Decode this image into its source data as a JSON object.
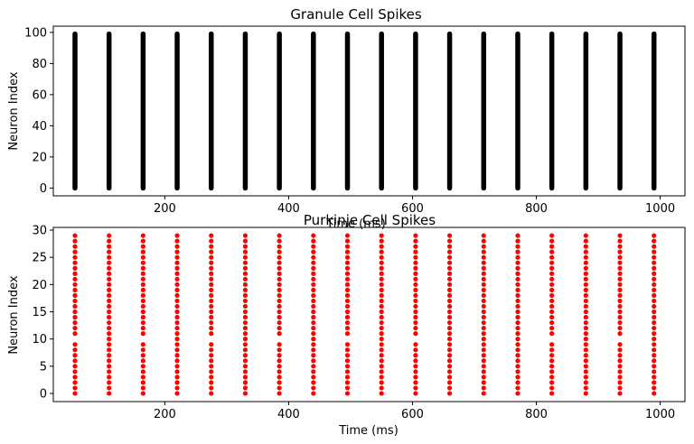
{
  "chart_data": [
    {
      "type": "scatter",
      "title": "Granule Cell Spikes",
      "xlabel": "Time (ms)",
      "ylabel": "Neuron Index",
      "xlim": [
        20,
        1040
      ],
      "ylim": [
        -5,
        104
      ],
      "xticks": [
        200,
        400,
        600,
        800,
        1000
      ],
      "yticks": [
        0,
        20,
        40,
        60,
        80,
        100
      ],
      "color": "#000000",
      "grid": false,
      "series": [
        {
          "spike_times": [
            55,
            110,
            165,
            220,
            275,
            330,
            385,
            440,
            495,
            550,
            605,
            660,
            715,
            770,
            825,
            880,
            935,
            990
          ],
          "neurons_per_spike": [
            0,
            99
          ]
        }
      ]
    },
    {
      "type": "scatter",
      "title": "Purkinje Cell Spikes",
      "xlabel": "Time (ms)",
      "ylabel": "Neuron Index",
      "xlim": [
        20,
        1040
      ],
      "ylim": [
        -1.5,
        30.5
      ],
      "xticks": [
        200,
        400,
        600,
        800,
        1000
      ],
      "yticks": [
        0,
        5,
        10,
        15,
        20,
        25,
        30
      ],
      "color": "#ff0000",
      "grid": false,
      "series": [
        {
          "spike_times": [
            55,
            110,
            165,
            220,
            275,
            330,
            385,
            440,
            495,
            550,
            605,
            660,
            715,
            770,
            825,
            880,
            935,
            990
          ],
          "neurons_active": [
            [
              0,
              1,
              2,
              3,
              4,
              5,
              6,
              7,
              8,
              9,
              11,
              12,
              13,
              14,
              15,
              16,
              17,
              18,
              19,
              20,
              21,
              22,
              23,
              24,
              25,
              26,
              27,
              28,
              29
            ],
            [
              0,
              1,
              2,
              3,
              4,
              5,
              6,
              7,
              8,
              9,
              10,
              11,
              12,
              13,
              14,
              15,
              16,
              17,
              18,
              19,
              20,
              21,
              22,
              23,
              24,
              25,
              26,
              27,
              28,
              29
            ],
            [
              0,
              1,
              2,
              3,
              4,
              5,
              6,
              7,
              8,
              9,
              11,
              12,
              13,
              14,
              15,
              16,
              17,
              18,
              19,
              20,
              21,
              22,
              23,
              24,
              25,
              26,
              27,
              28,
              29
            ],
            [
              0,
              1,
              2,
              3,
              4,
              5,
              6,
              7,
              8,
              9,
              10,
              11,
              12,
              13,
              14,
              15,
              16,
              17,
              18,
              19,
              20,
              21,
              22,
              23,
              24,
              25,
              26,
              27,
              28,
              29
            ],
            [
              0,
              1,
              2,
              3,
              4,
              5,
              6,
              7,
              8,
              9,
              11,
              12,
              13,
              14,
              15,
              16,
              17,
              18,
              19,
              20,
              21,
              22,
              23,
              24,
              25,
              26,
              27,
              28,
              29
            ],
            [
              0,
              1,
              2,
              3,
              4,
              5,
              6,
              7,
              8,
              9,
              10,
              11,
              12,
              13,
              14,
              15,
              16,
              17,
              18,
              19,
              20,
              21,
              22,
              23,
              24,
              25,
              26,
              27,
              28,
              29
            ],
            [
              0,
              1,
              2,
              3,
              4,
              5,
              6,
              7,
              8,
              9,
              11,
              12,
              13,
              14,
              15,
              16,
              17,
              18,
              19,
              20,
              21,
              22,
              23,
              24,
              25,
              26,
              27,
              28,
              29
            ],
            [
              0,
              1,
              2,
              3,
              4,
              5,
              6,
              7,
              8,
              9,
              10,
              11,
              12,
              13,
              14,
              15,
              16,
              17,
              18,
              19,
              20,
              21,
              22,
              23,
              24,
              25,
              26,
              27,
              28,
              29
            ],
            [
              0,
              1,
              2,
              3,
              4,
              5,
              6,
              7,
              8,
              9,
              11,
              12,
              13,
              14,
              15,
              16,
              17,
              18,
              19,
              20,
              21,
              22,
              23,
              24,
              25,
              26,
              27,
              28,
              29
            ],
            [
              0,
              1,
              2,
              3,
              4,
              5,
              6,
              7,
              8,
              9,
              10,
              11,
              12,
              13,
              14,
              15,
              16,
              17,
              18,
              19,
              20,
              21,
              22,
              23,
              24,
              25,
              26,
              27,
              28,
              29
            ],
            [
              0,
              1,
              2,
              3,
              4,
              5,
              6,
              7,
              8,
              9,
              11,
              12,
              13,
              14,
              15,
              16,
              17,
              18,
              19,
              20,
              21,
              22,
              23,
              24,
              25,
              26,
              27,
              28,
              29
            ],
            [
              0,
              1,
              2,
              3,
              4,
              5,
              6,
              7,
              8,
              9,
              10,
              11,
              12,
              13,
              14,
              15,
              16,
              17,
              18,
              19,
              20,
              21,
              22,
              23,
              24,
              25,
              26,
              27,
              28,
              29
            ],
            [
              0,
              1,
              2,
              3,
              4,
              5,
              6,
              7,
              8,
              9,
              10,
              11,
              12,
              13,
              14,
              15,
              16,
              17,
              18,
              19,
              20,
              21,
              22,
              23,
              24,
              25,
              26,
              27,
              28,
              29
            ],
            [
              0,
              1,
              2,
              3,
              4,
              5,
              6,
              7,
              8,
              9,
              10,
              11,
              12,
              13,
              14,
              15,
              16,
              17,
              18,
              19,
              20,
              21,
              22,
              23,
              24,
              25,
              26,
              27,
              28,
              29
            ],
            [
              0,
              1,
              2,
              3,
              4,
              5,
              6,
              7,
              8,
              9,
              11,
              12,
              13,
              14,
              15,
              16,
              17,
              18,
              19,
              20,
              21,
              22,
              23,
              24,
              25,
              26,
              27,
              28,
              29
            ],
            [
              0,
              1,
              2,
              3,
              4,
              5,
              6,
              7,
              8,
              9,
              10,
              11,
              12,
              13,
              14,
              15,
              16,
              17,
              18,
              19,
              20,
              21,
              22,
              23,
              24,
              25,
              26,
              27,
              28,
              29
            ],
            [
              0,
              1,
              2,
              3,
              4,
              5,
              6,
              7,
              8,
              9,
              11,
              12,
              13,
              14,
              15,
              16,
              17,
              18,
              19,
              20,
              21,
              22,
              23,
              24,
              25,
              26,
              27,
              28,
              29
            ],
            [
              0,
              1,
              2,
              3,
              4,
              5,
              6,
              7,
              8,
              9,
              10,
              11,
              12,
              13,
              14,
              15,
              16,
              17,
              18,
              19,
              20,
              21,
              22,
              23,
              24,
              25,
              26,
              27,
              28,
              29
            ]
          ]
        }
      ]
    }
  ]
}
